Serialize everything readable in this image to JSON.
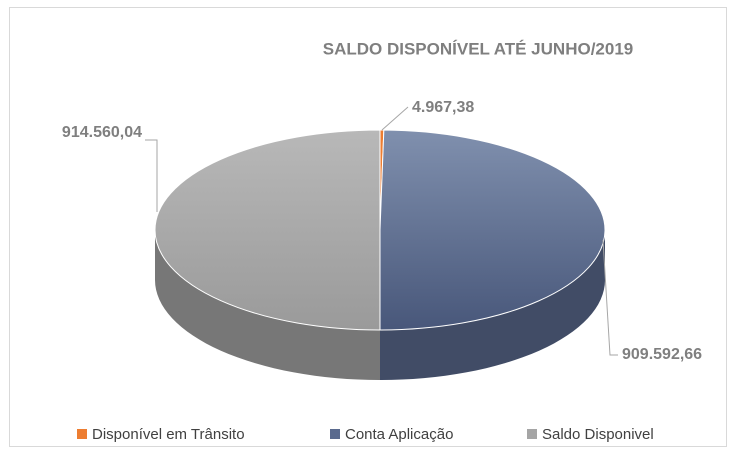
{
  "chart_data": {
    "type": "pie",
    "title": "SALDO DISPONÍVEL ATÉ JUNHO/2019",
    "categories": [
      "Disponível em Trânsito",
      "Conta Aplicação",
      "Saldo Disponivel"
    ],
    "values": [
      4967.38,
      909592.66,
      914560.04
    ],
    "value_labels": [
      "4.967,38",
      "909.592,66",
      "914.560,04"
    ],
    "colors": [
      "#ed7d31",
      "#5a6a8e",
      "#a5a5a5"
    ],
    "legend": "bottom"
  }
}
